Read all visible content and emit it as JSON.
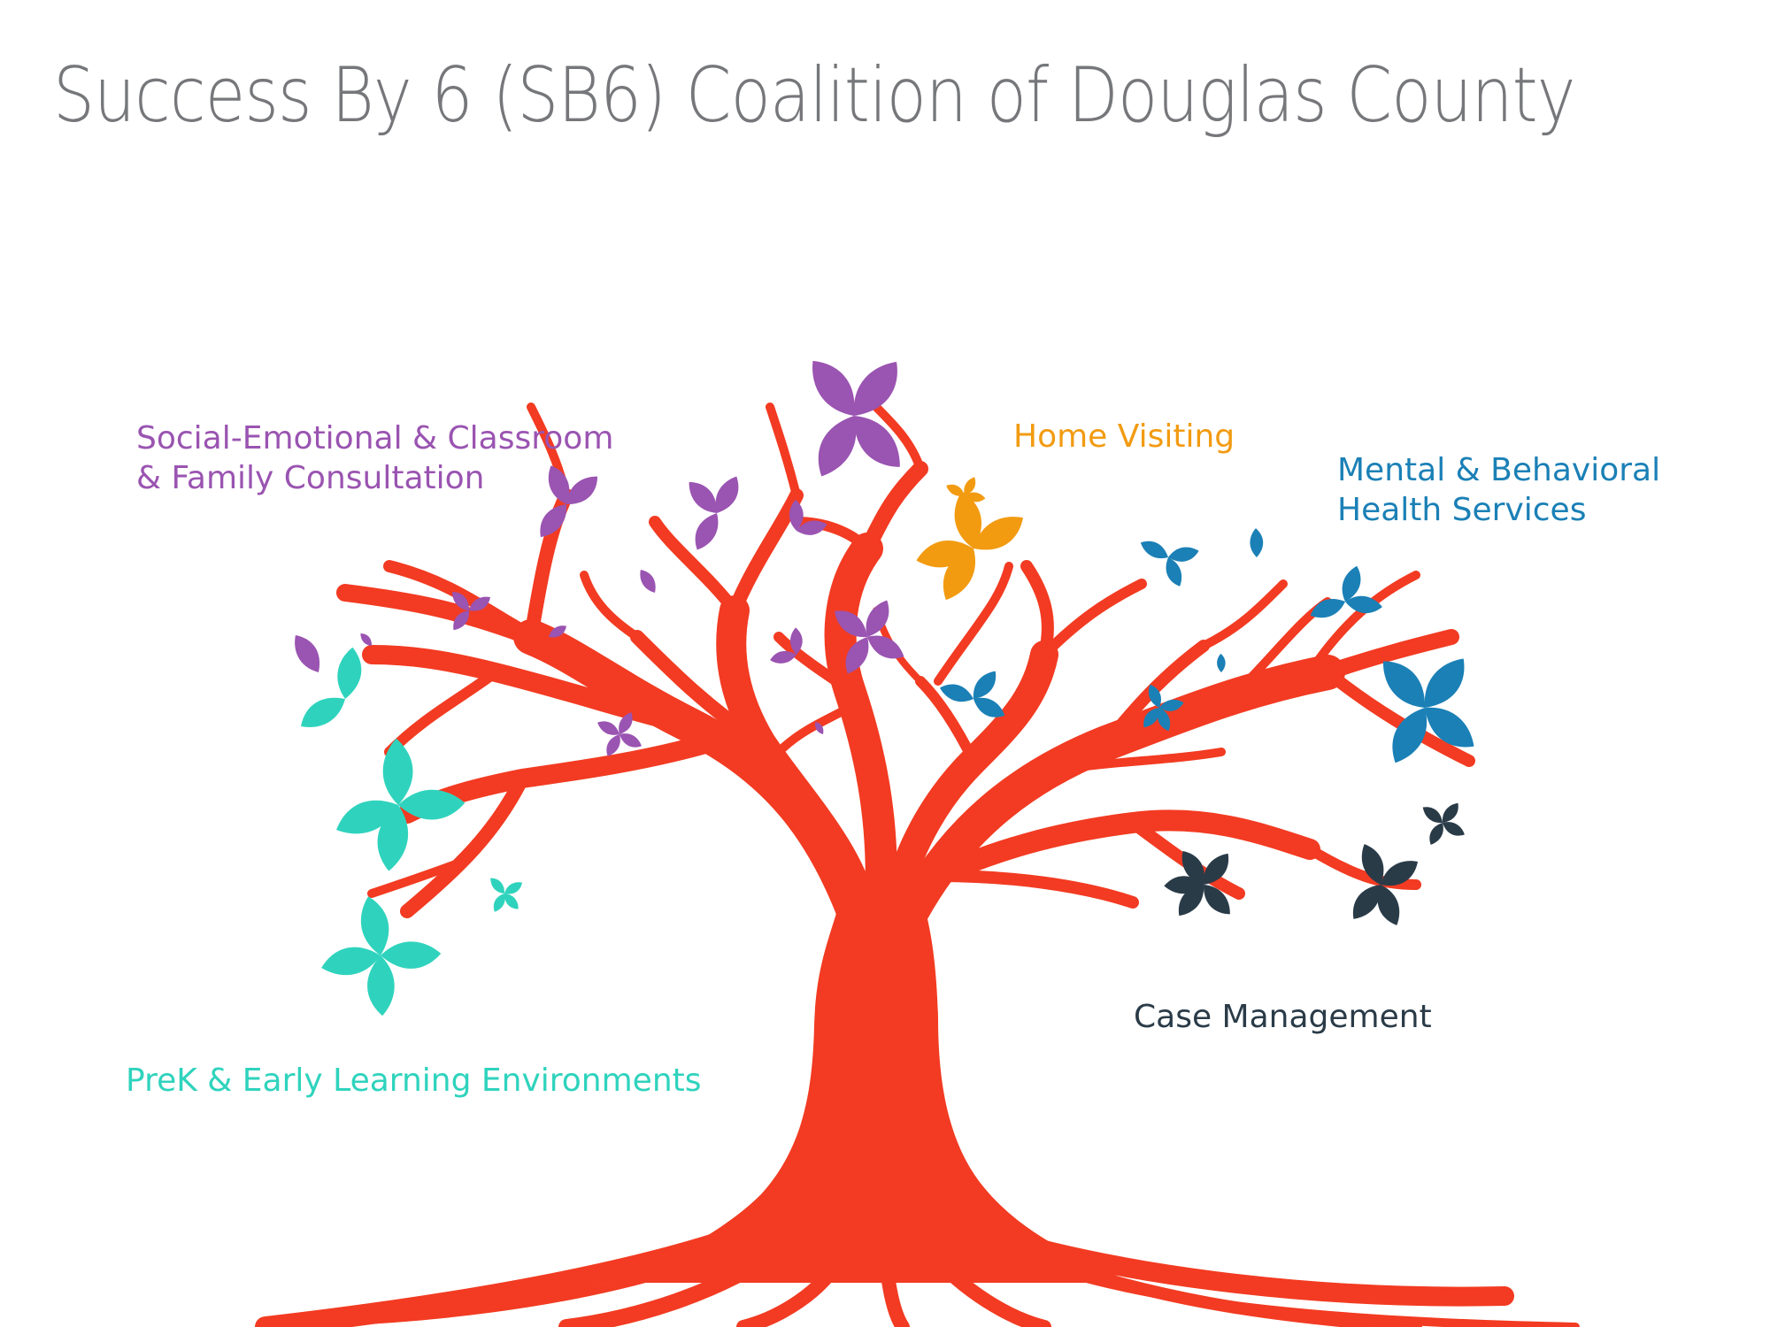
{
  "title": "Success By 6 (SB6) Coalition of Douglas County",
  "colors": {
    "tree": "#f23b22",
    "title": "#76777a",
    "social_emotional": "#9a54b1",
    "home_visiting": "#f29b11",
    "mental_health": "#1b80b6",
    "case_management": "#2a3b48",
    "prek": "#2fd3bd"
  },
  "labels": {
    "social_emotional": [
      "Social-Emotional & Classroom",
      "& Family Consultation"
    ],
    "home_visiting": [
      "Home Visiting"
    ],
    "mental_health": [
      "Mental & Behavioral",
      "Health Services"
    ],
    "case_management": [
      "Case Management"
    ],
    "prek": [
      "PreK & Early Learning Environments"
    ]
  }
}
